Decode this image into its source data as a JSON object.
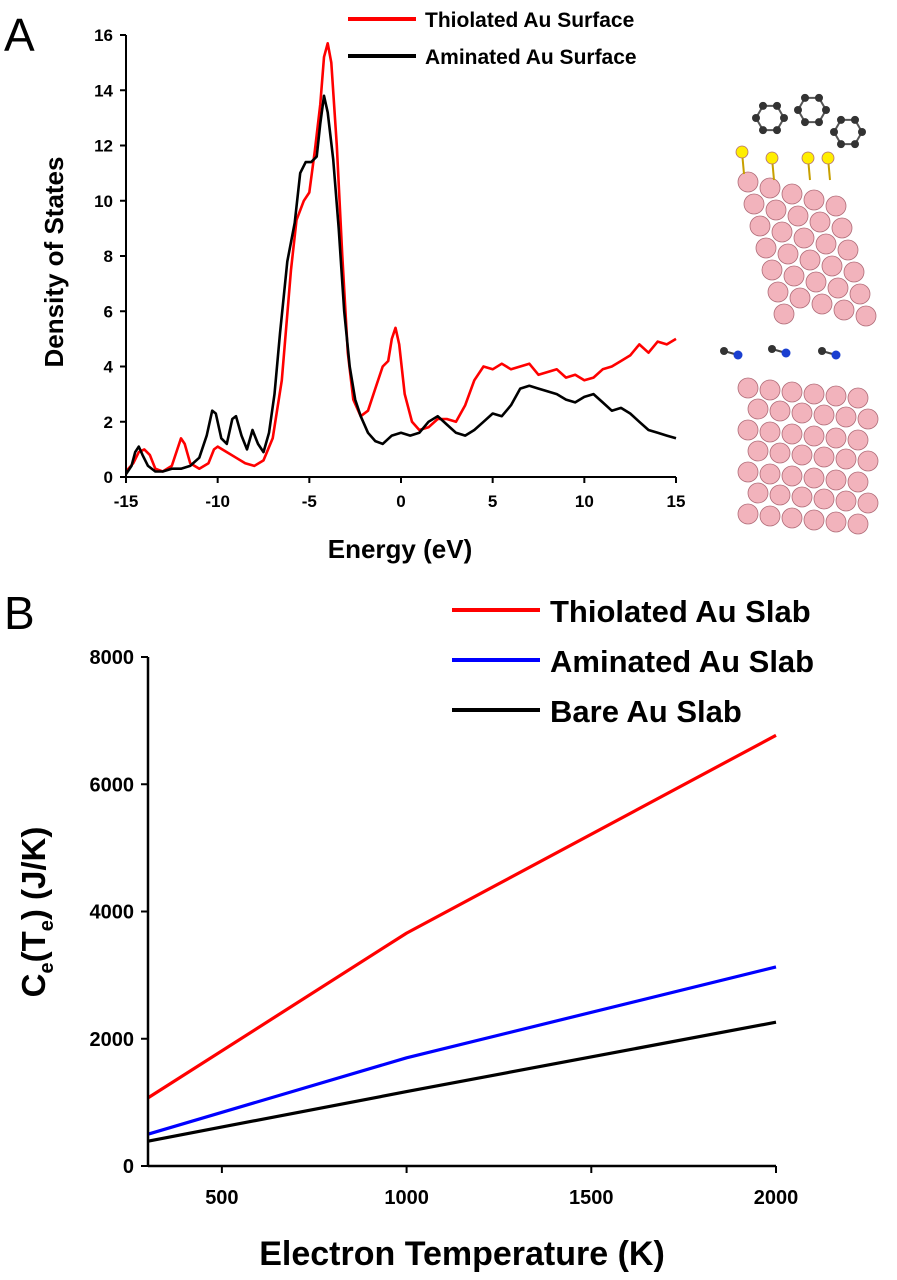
{
  "panels": {
    "a": "A",
    "b": "B"
  },
  "chart_data": [
    {
      "type": "line",
      "panel": "A",
      "xlabel": "Energy (eV)",
      "ylabel": "Density of States",
      "xlim": [
        -15,
        15
      ],
      "ylim": [
        0,
        16
      ],
      "xticks": [
        -15,
        -10,
        -5,
        0,
        5,
        10,
        15
      ],
      "yticks": [
        0,
        2,
        4,
        6,
        8,
        10,
        12,
        14,
        16
      ],
      "legend_position": "top",
      "series": [
        {
          "name": "Thiolated Au Surface",
          "color": "#ff0000",
          "points": [
            [
              -15,
              0.2
            ],
            [
              -14.6,
              0.5
            ],
            [
              -14.3,
              0.9
            ],
            [
              -14,
              1.0
            ],
            [
              -13.7,
              0.8
            ],
            [
              -13.4,
              0.3
            ],
            [
              -13,
              0.2
            ],
            [
              -12.5,
              0.4
            ],
            [
              -12.2,
              1.0
            ],
            [
              -12,
              1.4
            ],
            [
              -11.8,
              1.2
            ],
            [
              -11.5,
              0.5
            ],
            [
              -11,
              0.3
            ],
            [
              -10.5,
              0.5
            ],
            [
              -10.2,
              1.0
            ],
            [
              -10,
              1.1
            ],
            [
              -9.5,
              0.9
            ],
            [
              -9,
              0.7
            ],
            [
              -8.5,
              0.5
            ],
            [
              -8,
              0.4
            ],
            [
              -7.5,
              0.6
            ],
            [
              -7,
              1.4
            ],
            [
              -6.5,
              3.5
            ],
            [
              -6,
              7.5
            ],
            [
              -5.7,
              9.3
            ],
            [
              -5.3,
              10.0
            ],
            [
              -5,
              10.3
            ],
            [
              -4.7,
              11.8
            ],
            [
              -4.4,
              13.5
            ],
            [
              -4.2,
              15.2
            ],
            [
              -4.0,
              15.7
            ],
            [
              -3.8,
              15.0
            ],
            [
              -3.5,
              12.0
            ],
            [
              -3.2,
              8.0
            ],
            [
              -2.9,
              4.5
            ],
            [
              -2.6,
              2.8
            ],
            [
              -2.2,
              2.2
            ],
            [
              -1.8,
              2.4
            ],
            [
              -1.4,
              3.2
            ],
            [
              -1,
              4.0
            ],
            [
              -0.7,
              4.2
            ],
            [
              -0.5,
              5.0
            ],
            [
              -0.3,
              5.4
            ],
            [
              -0.1,
              4.8
            ],
            [
              0.2,
              3.0
            ],
            [
              0.6,
              2.0
            ],
            [
              1,
              1.7
            ],
            [
              1.5,
              1.8
            ],
            [
              2,
              2.1
            ],
            [
              2.5,
              2.1
            ],
            [
              3,
              2.0
            ],
            [
              3.5,
              2.6
            ],
            [
              4,
              3.5
            ],
            [
              4.5,
              4.0
            ],
            [
              5,
              3.9
            ],
            [
              5.5,
              4.1
            ],
            [
              6,
              3.9
            ],
            [
              6.5,
              4.0
            ],
            [
              7,
              4.1
            ],
            [
              7.5,
              3.7
            ],
            [
              8,
              3.8
            ],
            [
              8.5,
              3.9
            ],
            [
              9,
              3.6
            ],
            [
              9.5,
              3.7
            ],
            [
              10,
              3.5
            ],
            [
              10.5,
              3.6
            ],
            [
              11,
              3.9
            ],
            [
              11.5,
              4.0
            ],
            [
              12,
              4.2
            ],
            [
              12.5,
              4.4
            ],
            [
              13,
              4.8
            ],
            [
              13.5,
              4.5
            ],
            [
              14,
              4.9
            ],
            [
              14.5,
              4.8
            ],
            [
              15,
              5.0
            ]
          ]
        },
        {
          "name": "Aminated Au Surface",
          "color": "#000000",
          "points": [
            [
              -15,
              0.1
            ],
            [
              -14.7,
              0.4
            ],
            [
              -14.5,
              0.9
            ],
            [
              -14.3,
              1.1
            ],
            [
              -14.1,
              0.8
            ],
            [
              -13.8,
              0.4
            ],
            [
              -13.4,
              0.2
            ],
            [
              -13,
              0.2
            ],
            [
              -12.5,
              0.3
            ],
            [
              -12,
              0.3
            ],
            [
              -11.5,
              0.4
            ],
            [
              -11,
              0.7
            ],
            [
              -10.6,
              1.5
            ],
            [
              -10.3,
              2.4
            ],
            [
              -10.1,
              2.3
            ],
            [
              -9.8,
              1.4
            ],
            [
              -9.5,
              1.2
            ],
            [
              -9.2,
              2.1
            ],
            [
              -9.0,
              2.2
            ],
            [
              -8.7,
              1.5
            ],
            [
              -8.4,
              1.0
            ],
            [
              -8.1,
              1.7
            ],
            [
              -7.8,
              1.2
            ],
            [
              -7.5,
              0.9
            ],
            [
              -7.2,
              1.6
            ],
            [
              -6.9,
              3.0
            ],
            [
              -6.6,
              5.2
            ],
            [
              -6.2,
              7.8
            ],
            [
              -5.8,
              9.2
            ],
            [
              -5.5,
              11.0
            ],
            [
              -5.2,
              11.4
            ],
            [
              -4.9,
              11.4
            ],
            [
              -4.6,
              11.6
            ],
            [
              -4.4,
              12.8
            ],
            [
              -4.2,
              13.8
            ],
            [
              -4.0,
              13.2
            ],
            [
              -3.7,
              11.5
            ],
            [
              -3.4,
              9.0
            ],
            [
              -3.1,
              6.0
            ],
            [
              -2.8,
              4.0
            ],
            [
              -2.5,
              2.8
            ],
            [
              -2.2,
              2.2
            ],
            [
              -1.8,
              1.6
            ],
            [
              -1.4,
              1.3
            ],
            [
              -1,
              1.2
            ],
            [
              -0.5,
              1.5
            ],
            [
              0,
              1.6
            ],
            [
              0.5,
              1.5
            ],
            [
              1,
              1.6
            ],
            [
              1.5,
              2.0
            ],
            [
              2,
              2.2
            ],
            [
              2.5,
              1.9
            ],
            [
              3,
              1.6
            ],
            [
              3.5,
              1.5
            ],
            [
              4,
              1.7
            ],
            [
              4.5,
              2.0
            ],
            [
              5,
              2.3
            ],
            [
              5.5,
              2.2
            ],
            [
              6,
              2.6
            ],
            [
              6.5,
              3.2
            ],
            [
              7,
              3.3
            ],
            [
              7.5,
              3.2
            ],
            [
              8,
              3.1
            ],
            [
              8.5,
              3.0
            ],
            [
              9,
              2.8
            ],
            [
              9.5,
              2.7
            ],
            [
              10,
              2.9
            ],
            [
              10.5,
              3.0
            ],
            [
              11,
              2.7
            ],
            [
              11.5,
              2.4
            ],
            [
              12,
              2.5
            ],
            [
              12.5,
              2.3
            ],
            [
              13,
              2.0
            ],
            [
              13.5,
              1.7
            ],
            [
              14,
              1.6
            ],
            [
              14.5,
              1.5
            ],
            [
              15,
              1.4
            ]
          ]
        }
      ]
    },
    {
      "type": "line",
      "panel": "B",
      "xlabel": "Electron Temperature (K)",
      "ylabel_main": "C",
      "ylabel_sub1": "e",
      "ylabel_mid": "(T",
      "ylabel_sub2": "e",
      "ylabel_end": ") (J/K)",
      "xlim": [
        300,
        2000
      ],
      "ylim": [
        0,
        8000
      ],
      "xticks": [
        500,
        1000,
        1500,
        2000
      ],
      "yticks": [
        0,
        2000,
        4000,
        6000,
        8000
      ],
      "legend_position": "top-right",
      "series": [
        {
          "name": "Thiolated Au Slab",
          "color": "#ff0000",
          "points": [
            [
              300,
              1070
            ],
            [
              1000,
              3660
            ],
            [
              2000,
              6770
            ]
          ]
        },
        {
          "name": "Aminated Au Slab",
          "color": "#0000ff",
          "points": [
            [
              300,
              500
            ],
            [
              1000,
              1700
            ],
            [
              2000,
              3130
            ]
          ]
        },
        {
          "name": "Bare Au Slab",
          "color": "#000000",
          "points": [
            [
              300,
              390
            ],
            [
              1000,
              1170
            ],
            [
              2000,
              2260
            ]
          ]
        }
      ]
    }
  ]
}
